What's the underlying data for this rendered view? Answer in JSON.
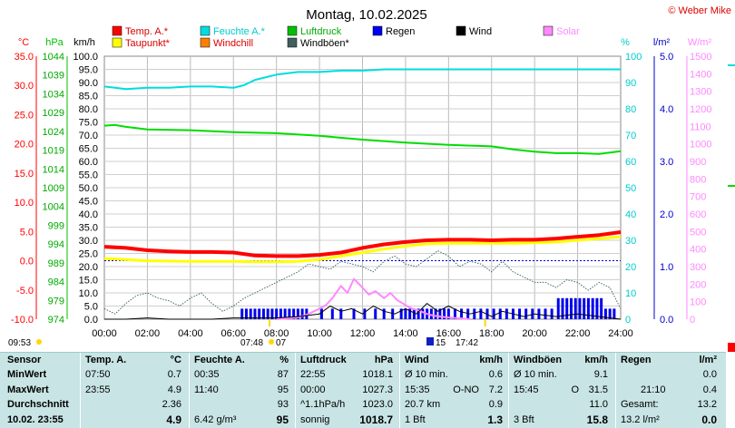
{
  "chart_data": {
    "type": "line",
    "title": "Montag, 10.02.2025",
    "credit": "© Weber Mike",
    "x_range_hours": [
      0,
      24
    ],
    "x_ticks": [
      "00:00",
      "02:00",
      "04:00",
      "06:00",
      "08:00",
      "10:00",
      "12:00",
      "14:00",
      "16:00",
      "18:00",
      "20:00",
      "22:00",
      "24:00"
    ],
    "axes": {
      "temp": {
        "unit": "°C",
        "range": [
          -10,
          35
        ],
        "ticks": [
          "35.0",
          "30.0",
          "25.0",
          "20.0",
          "15.0",
          "10.0",
          "5.0",
          "0.0",
          "-5.0",
          "-10.0"
        ],
        "color": "#ff0000"
      },
      "pressure": {
        "unit": "hPa",
        "range": [
          974,
          1044
        ],
        "ticks": [
          "1044",
          "1039",
          "1034",
          "1029",
          "1024",
          "1019",
          "1014",
          "1009",
          "1004",
          "999",
          "994",
          "989",
          "984",
          "979",
          "974"
        ],
        "color": "#00c000"
      },
      "wind": {
        "unit": "km/h",
        "range": [
          0,
          100
        ],
        "ticks": [
          "100.0",
          "95.0",
          "90.0",
          "85.0",
          "80.0",
          "75.0",
          "70.0",
          "65.0",
          "60.0",
          "55.0",
          "50.0",
          "45.0",
          "40.0",
          "35.0",
          "30.0",
          "25.0",
          "20.0",
          "15.0",
          "10.0",
          "5.0",
          "0.0"
        ],
        "color": "#000000"
      },
      "humidity": {
        "unit": "%",
        "range": [
          0,
          100
        ],
        "ticks": [
          "100",
          "90",
          "80",
          "70",
          "60",
          "50",
          "40",
          "30",
          "20",
          "10",
          "0"
        ],
        "color": "#00cccc"
      },
      "rain": {
        "unit": "l/m²",
        "range": [
          0,
          5
        ],
        "ticks": [
          "5.0",
          "4.0",
          "3.0",
          "2.0",
          "1.0",
          "0.0"
        ],
        "color": "#0000cc"
      },
      "solar": {
        "unit": "W/m²",
        "range": [
          0,
          1500
        ],
        "ticks": [
          "1500",
          "1400",
          "1300",
          "1200",
          "1100",
          "1000",
          "900",
          "800",
          "700",
          "600",
          "500",
          "400",
          "300",
          "200",
          "100",
          "0"
        ],
        "color": "#ff88ff"
      }
    },
    "legend": [
      {
        "name": "Temp. A.*",
        "color": "#ff0000"
      },
      {
        "name": "Feuchte A.*",
        "color": "#00dddd"
      },
      {
        "name": "Luftdruck",
        "color": "#00c000"
      },
      {
        "name": "Regen",
        "color": "#0000ee"
      },
      {
        "name": "Wind",
        "color": "#000000"
      },
      {
        "name": "Solar",
        "color": "#ff88ff"
      },
      {
        "name": "Taupunkt*",
        "color": "#ffff00"
      },
      {
        "name": "Windchill",
        "color": "#ff7f00"
      },
      {
        "name": "Windböen*",
        "color": "#406060"
      }
    ],
    "series": [
      {
        "name": "Temp. A.*",
        "axis": "temp",
        "x": [
          0,
          1,
          2,
          3,
          4,
          5,
          6,
          7,
          8,
          9,
          10,
          11,
          12,
          13,
          14,
          15,
          16,
          17,
          18,
          19,
          20,
          21,
          22,
          23,
          24
        ],
        "values": [
          2.4,
          2.2,
          1.8,
          1.6,
          1.5,
          1.5,
          1.4,
          0.9,
          0.8,
          0.8,
          1.0,
          1.4,
          2.2,
          2.8,
          3.2,
          3.5,
          3.6,
          3.6,
          3.5,
          3.6,
          3.6,
          3.8,
          4.1,
          4.4,
          4.9
        ]
      },
      {
        "name": "Taupunkt*",
        "axis": "temp",
        "x": [
          0,
          2,
          4,
          6,
          7,
          8,
          9,
          10,
          11,
          12,
          13,
          14,
          15,
          16,
          17,
          18,
          19,
          20,
          21,
          22,
          23,
          24
        ],
        "values": [
          0.4,
          0.0,
          -0.1,
          -0.1,
          -0.2,
          -0.2,
          -0.1,
          0.2,
          0.8,
          1.4,
          2.0,
          2.5,
          2.9,
          3.0,
          3.0,
          3.0,
          3.0,
          3.1,
          3.2,
          3.5,
          3.8,
          4.1
        ]
      },
      {
        "name": "Feuchte A.*",
        "axis": "humidity",
        "x": [
          0,
          0.5,
          1,
          2,
          3,
          4,
          5,
          6,
          6.5,
          7,
          8,
          9,
          10,
          11,
          12,
          13,
          14,
          16,
          18,
          20,
          22,
          24
        ],
        "values": [
          88.5,
          88,
          87.5,
          88,
          88,
          88.5,
          88.5,
          88,
          89,
          91,
          93,
          94,
          94,
          94.5,
          94.5,
          95,
          95,
          95,
          95,
          95,
          95,
          95
        ]
      },
      {
        "name": "Luftdruck",
        "axis": "pressure",
        "x": [
          0,
          0.5,
          1,
          2,
          4,
          6,
          8,
          10,
          12,
          14,
          16,
          18,
          19,
          20,
          21,
          22,
          23,
          24
        ],
        "values": [
          1025.5,
          1025.7,
          1025.2,
          1024.5,
          1024.3,
          1023.8,
          1023.5,
          1022.8,
          1021.8,
          1021,
          1020.4,
          1020,
          1019.2,
          1018.6,
          1018.2,
          1018.2,
          1018.0,
          1018.7
        ]
      },
      {
        "name": "Windböen*",
        "axis": "wind",
        "x": [
          0,
          0.5,
          1,
          1.5,
          2,
          2.5,
          3,
          3.5,
          4,
          4.5,
          5,
          5.5,
          6,
          6.5,
          7,
          7.5,
          8,
          8.5,
          9,
          9.5,
          10,
          10.5,
          11,
          11.5,
          12,
          12.5,
          13,
          13.5,
          14,
          14.5,
          15,
          15.5,
          16,
          16.5,
          17,
          17.5,
          18,
          18.5,
          19,
          19.5,
          20,
          20.5,
          21,
          21.5,
          22,
          22.5,
          23,
          23.5,
          24
        ],
        "values": [
          4,
          2,
          6,
          9,
          10,
          8,
          7,
          5,
          8,
          10,
          6,
          3,
          5,
          8,
          10,
          12,
          14,
          16,
          18,
          21,
          20,
          19,
          22,
          21,
          20,
          18,
          22,
          24,
          21,
          20,
          23,
          26,
          24,
          20,
          22,
          21,
          18,
          22,
          18,
          16,
          14,
          14,
          12,
          15,
          14,
          11,
          14,
          12,
          4
        ]
      },
      {
        "name": "Wind",
        "axis": "wind",
        "x": [
          0,
          1,
          2,
          3,
          4,
          5,
          6,
          7,
          8,
          9,
          10,
          10.5,
          11,
          11.5,
          12,
          12.5,
          13,
          13.5,
          14,
          14.5,
          15,
          15.5,
          16,
          16.5,
          17,
          17.5,
          18,
          18.5,
          19,
          19.5,
          20,
          21,
          22,
          23,
          24
        ],
        "values": [
          0,
          0,
          0.5,
          0,
          0,
          0,
          0.5,
          0.5,
          0.5,
          1,
          2,
          5,
          3,
          4,
          2,
          5,
          3,
          2,
          4,
          2,
          6,
          3,
          5,
          3,
          2,
          3,
          1,
          3,
          2,
          1,
          2,
          1,
          2,
          1,
          0
        ]
      },
      {
        "name": "Solar",
        "axis": "solar",
        "x": [
          8,
          9,
          9.5,
          10,
          10.3,
          10.6,
          11,
          11.3,
          11.6,
          12,
          12.3,
          12.6,
          13,
          13.3,
          13.6,
          14,
          14.3,
          14.6,
          15,
          15.3,
          15.6,
          16,
          16.5,
          17
        ],
        "values": [
          0,
          10,
          30,
          60,
          80,
          120,
          190,
          150,
          230,
          180,
          140,
          160,
          120,
          150,
          110,
          80,
          60,
          50,
          30,
          20,
          15,
          10,
          5,
          0
        ]
      },
      {
        "name": "Regen",
        "axis": "rain",
        "type": "bar",
        "x": [
          6.4,
          6.6,
          6.8,
          7,
          7.2,
          7.4,
          7.6,
          7.8,
          8.0,
          8.2,
          8.4,
          8.6,
          8.8,
          9.0,
          9.2,
          9.4,
          10.1,
          10.6,
          11.0,
          11.6,
          12.1,
          12.6,
          13.0,
          13.4,
          13.8,
          14.0,
          14.2,
          14.4,
          14.6,
          14.8,
          15.0,
          15.2,
          15.4,
          15.6,
          15.8,
          16.0,
          16.3,
          16.6,
          16.9,
          17.2,
          17.5,
          17.8,
          18.1,
          18.4,
          18.7,
          19.0,
          19.3,
          19.6,
          19.9,
          20.2,
          20.5,
          20.8,
          21.1,
          21.3,
          21.5,
          21.7,
          21.9,
          22.1,
          22.3,
          22.5,
          22.7,
          22.9,
          23.1,
          23.3,
          23.5,
          23.7
        ],
        "values": [
          0.2,
          0.2,
          0.2,
          0.2,
          0.2,
          0.2,
          0.2,
          0.2,
          0.2,
          0.2,
          0.2,
          0.2,
          0.2,
          0.2,
          0.2,
          0.2,
          0.2,
          0.2,
          0.2,
          0.2,
          0.2,
          0.2,
          0.2,
          0.2,
          0.2,
          0.2,
          0.2,
          0.2,
          0.2,
          0.2,
          0.2,
          0.2,
          0.2,
          0.2,
          0.2,
          0.2,
          0.2,
          0.2,
          0.2,
          0.2,
          0.2,
          0.2,
          0.2,
          0.2,
          0.2,
          0.2,
          0.2,
          0.2,
          0.2,
          0.2,
          0.2,
          0.2,
          0.4,
          0.4,
          0.4,
          0.4,
          0.4,
          0.4,
          0.4,
          0.4,
          0.4,
          0.4,
          0.4,
          0.2,
          0.2,
          0.2
        ]
      }
    ],
    "reference_line": {
      "axis": "temp",
      "value": 0.0,
      "color": "#0000cc",
      "style": "dotted"
    },
    "time_markers": {
      "sunrise_bottom": "07:48",
      "sunrise_tail": "07",
      "moon_left": "15",
      "moon_right": "17:42",
      "start_time": "09:53"
    },
    "grid": true,
    "legend_placement": "top"
  },
  "stats": {
    "sensor": {
      "header": "Sensor",
      "rows": [
        "MinWert",
        "MaxWert",
        "Durchschnitt",
        "10.02. 23:55"
      ]
    },
    "temp": {
      "header": "Temp. A.",
      "unit": "°C",
      "rows": [
        [
          "07:50",
          "0.7"
        ],
        [
          "23:55",
          "4.9"
        ],
        [
          "",
          "2.36"
        ],
        [
          "",
          "4.9"
        ]
      ]
    },
    "humidity": {
      "header": "Feuchte A.",
      "unit": "%",
      "rows": [
        [
          "00:35",
          "87"
        ],
        [
          "11:40",
          "95"
        ],
        [
          "",
          "93"
        ],
        [
          "6.42 g/m³",
          "95"
        ]
      ]
    },
    "pressure": {
      "header": "Luftdruck",
      "unit": "hPa",
      "rows": [
        [
          "22:55",
          "1018.1"
        ],
        [
          "00:00",
          "1027.3"
        ],
        [
          "^1.1hPa/h",
          "1023.0"
        ],
        [
          "sonnig",
          "1018.7"
        ]
      ]
    },
    "wind": {
      "header": "Wind",
      "unit": "km/h",
      "rows": [
        [
          "Ø 10 min.",
          "",
          "0.6"
        ],
        [
          "15:35",
          "O-NO",
          "7.2"
        ],
        [
          "20.7 km",
          "",
          "0.9"
        ],
        [
          "1 Bft",
          "",
          "1.3"
        ]
      ]
    },
    "gusts": {
      "header": "Windböen",
      "unit": "km/h",
      "rows": [
        [
          "Ø 10 min.",
          "",
          "9.1"
        ],
        [
          "15:45",
          "O",
          "31.5"
        ],
        [
          "",
          "",
          "11.0"
        ],
        [
          "3 Bft",
          "",
          "15.8"
        ]
      ]
    },
    "rain": {
      "header": "Regen",
      "unit": "l/m²",
      "rows": [
        [
          "",
          "0.0"
        ],
        [
          "21:10",
          "0.4"
        ],
        [
          "Gesamt:",
          "13.2"
        ],
        [
          "13.2 l/m²",
          "0.0"
        ]
      ]
    }
  }
}
